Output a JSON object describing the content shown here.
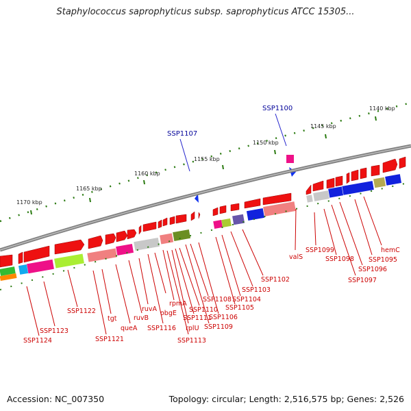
{
  "header": {
    "title": "Staphylococcus saprophyticus subsp. saprophyticus ATCC 15305..."
  },
  "footer": {
    "accession": "Accession: NC_007350",
    "topology": "Topology: circular; Length: 2,516,575 bp; Genes: 2,526"
  },
  "colors": {
    "arrow_red": "#ee1111",
    "highlight_label": "#000099",
    "label_red": "#cc0000",
    "backbone": "#888888",
    "tick_green": "#2a7a10"
  },
  "map": {
    "scale_labels": [
      "1140 kbp",
      "1145 kbp",
      "1150 kbp",
      "1155 kbp",
      "1160 kbp",
      "1165 kbp",
      "1170 kbp"
    ],
    "highlight_labels": [
      "SSP1100",
      "SSP1107"
    ],
    "gene_labels": [
      "SSP1124",
      "SSP1123",
      "SSP1122",
      "SSP1121",
      "tgt",
      "queA",
      "ruvB",
      "ruvA",
      "SSP1116",
      "obgE",
      "rpmA",
      "SSP1113",
      "rplU",
      "SSP1111",
      "SSP1110",
      "SSP1109",
      "SSP1108",
      "SSP1106",
      "SSP1105",
      "SSP1104",
      "SSP1103",
      "SSP1102",
      "valS",
      "SSP1099",
      "SSP1098",
      "SSP1097",
      "SSP1096",
      "SSP1095",
      "hemC"
    ]
  }
}
